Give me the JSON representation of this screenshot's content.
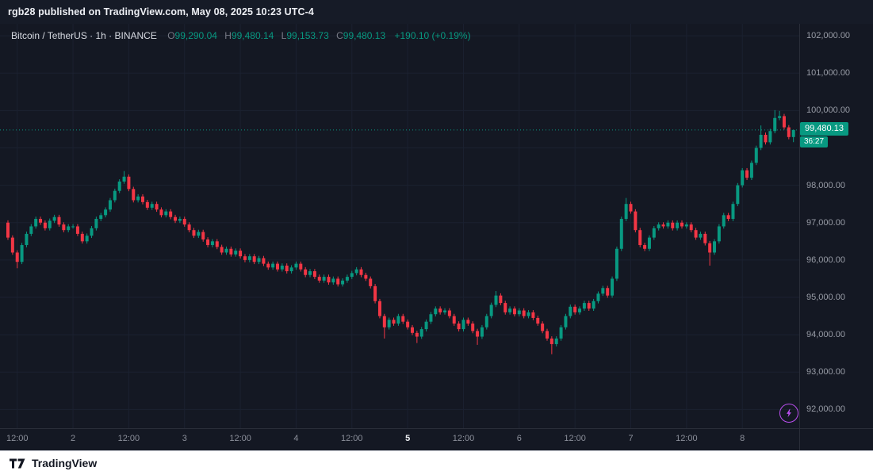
{
  "header": {
    "attribution": "rgb28 published on TradingView.com, May 08, 2025 10:23 UTC-4"
  },
  "legend": {
    "title": "Bitcoin / TetherUS · 1h · BINANCE",
    "o_key": "O",
    "o_val": "99,290.04",
    "h_key": "H",
    "h_val": "99,480.14",
    "l_key": "L",
    "l_val": "99,153.73",
    "c_key": "C",
    "c_val": "99,480.13",
    "change": "+190.10 (+0.19%)"
  },
  "price_scale": {
    "labels": [
      {
        "v": 102000,
        "label": "102,000.00"
      },
      {
        "v": 101000,
        "label": "101,000.00"
      },
      {
        "v": 100000,
        "label": "100,000.00"
      },
      {
        "v": 98000,
        "label": "98,000.00"
      },
      {
        "v": 97000,
        "label": "97,000.00"
      },
      {
        "v": 96000,
        "label": "96,000.00"
      },
      {
        "v": 95000,
        "label": "95,000.00"
      },
      {
        "v": 94000,
        "label": "94,000.00"
      },
      {
        "v": 93000,
        "label": "93,000.00"
      },
      {
        "v": 92000,
        "label": "92,000.00"
      }
    ],
    "gridline_values": [
      92000,
      93000,
      94000,
      95000,
      96000,
      97000,
      98000,
      99000,
      100000,
      101000,
      102000
    ],
    "current": {
      "label": "99,480.13",
      "countdown": "36:27",
      "value": 99480.13
    }
  },
  "time_scale": {
    "labels": [
      {
        "idx": 2,
        "label": "12:00"
      },
      {
        "idx": 14,
        "label": "2"
      },
      {
        "idx": 26,
        "label": "12:00"
      },
      {
        "idx": 38,
        "label": "3"
      },
      {
        "idx": 50,
        "label": "12:00"
      },
      {
        "idx": 62,
        "label": "4"
      },
      {
        "idx": 74,
        "label": "12:00"
      },
      {
        "idx": 86,
        "label": "5",
        "emphasis": true
      },
      {
        "idx": 98,
        "label": "12:00"
      },
      {
        "idx": 110,
        "label": "6"
      },
      {
        "idx": 122,
        "label": "12:00"
      },
      {
        "idx": 134,
        "label": "7"
      },
      {
        "idx": 146,
        "label": "12:00"
      },
      {
        "idx": 158,
        "label": "8"
      }
    ]
  },
  "footer": {
    "brand": "TradingView"
  },
  "colors": {
    "up": "#089981",
    "down": "#f23645",
    "grid": "#1b2130",
    "axis_line": "#2a2e39"
  },
  "chart_data": {
    "type": "candlestick",
    "symbol": "Bitcoin / TetherUS",
    "exchange": "BINANCE",
    "interval": "1h",
    "ylim": [
      91500,
      102320
    ],
    "current_price": 99480.13,
    "first_open": 97000,
    "default_wick": 60,
    "closes": [
      96600,
      96200,
      95950,
      96400,
      96700,
      96900,
      97100,
      97000,
      96850,
      97050,
      97150,
      96950,
      96800,
      96900,
      96900,
      96700,
      96500,
      96650,
      96850,
      97100,
      97200,
      97350,
      97600,
      97850,
      98100,
      98230,
      97900,
      97600,
      97700,
      97550,
      97400,
      97500,
      97350,
      97200,
      97300,
      97150,
      97050,
      97100,
      96950,
      96800,
      96650,
      96750,
      96550,
      96400,
      96500,
      96350,
      96200,
      96300,
      96150,
      96250,
      96100,
      96000,
      96100,
      95950,
      96050,
      95900,
      95800,
      95900,
      95750,
      95850,
      95700,
      95800,
      95900,
      95750,
      95600,
      95700,
      95550,
      95450,
      95550,
      95400,
      95500,
      95350,
      95450,
      95550,
      95650,
      95750,
      95600,
      95500,
      95300,
      94900,
      94500,
      94200,
      94400,
      94300,
      94500,
      94350,
      94200,
      94050,
      93950,
      94150,
      94350,
      94550,
      94700,
      94600,
      94650,
      94500,
      94300,
      94150,
      94400,
      94300,
      94100,
      93950,
      94200,
      94500,
      94800,
      95050,
      94850,
      94600,
      94700,
      94550,
      94650,
      94500,
      94600,
      94450,
      94300,
      94100,
      93900,
      93750,
      93900,
      94200,
      94500,
      94750,
      94600,
      94700,
      94850,
      94700,
      94900,
      95100,
      95250,
      95050,
      95500,
      96300,
      97100,
      97500,
      97300,
      96800,
      96400,
      96300,
      96600,
      96850,
      96950,
      96900,
      97000,
      96850,
      97000,
      96900,
      96950,
      96800,
      96600,
      96700,
      96450,
      96200,
      96500,
      96900,
      97200,
      97100,
      97500,
      98000,
      98400,
      98200,
      98600,
      99000,
      99350,
      99150,
      99450,
      99800,
      99850,
      99550,
      99290,
      99480
    ],
    "wick_overrides": {
      "2": {
        "low": 95780
      },
      "25": {
        "high": 98380
      },
      "81": {
        "low": 93900
      },
      "88": {
        "low": 93780
      },
      "101": {
        "low": 93730
      },
      "105": {
        "high": 95170
      },
      "117": {
        "low": 93480
      },
      "133": {
        "high": 97660
      },
      "151": {
        "low": 95850
      },
      "162": {
        "high": 99600
      },
      "165": {
        "high": 100010
      },
      "166": {
        "high": 99990
      },
      "169": {
        "high": 99480.14,
        "low": 99153.73
      }
    },
    "last_candle_ohlc": {
      "o": 99290.04,
      "h": 99480.14,
      "l": 99153.73,
      "c": 99480.13
    }
  }
}
